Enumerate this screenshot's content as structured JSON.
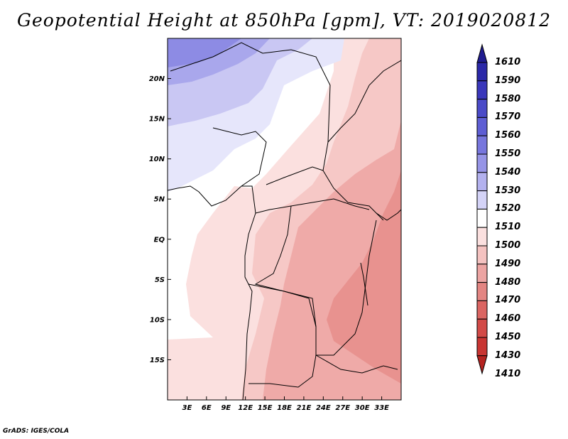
{
  "title": "Geopotential Height at 850hPa [gpm], VT: 2019020812",
  "credit": "GrADS: IGES/COLA",
  "map": {
    "lon_range": [
      0,
      36
    ],
    "lat_range": [
      -20,
      25
    ],
    "lon_ticks": [
      "3E",
      "6E",
      "9E",
      "12E",
      "15E",
      "18E",
      "21E",
      "24E",
      "27E",
      "30E",
      "33E"
    ],
    "lat_ticks": [
      "20N",
      "15N",
      "10N",
      "5N",
      "EQ",
      "5S",
      "10S",
      "15S"
    ]
  },
  "colorbar": {
    "labels": [
      "1610",
      "1590",
      "1580",
      "1570",
      "1560",
      "1550",
      "1540",
      "1530",
      "1520",
      "1510",
      "1500",
      "1490",
      "1480",
      "1470",
      "1460",
      "1450",
      "1430",
      "1410"
    ],
    "colors": [
      "#201c90",
      "#2b28a8",
      "#3a37bb",
      "#4a4ac8",
      "#5e5ed4",
      "#7776dd",
      "#9694e6",
      "#b3b1ee",
      "#d4d3f7",
      "#ffffff",
      "#fbe0df",
      "#f4c2c0",
      "#eca4a2",
      "#e38582",
      "#db6562",
      "#d24a47",
      "#c83532",
      "#b52320"
    ]
  }
}
